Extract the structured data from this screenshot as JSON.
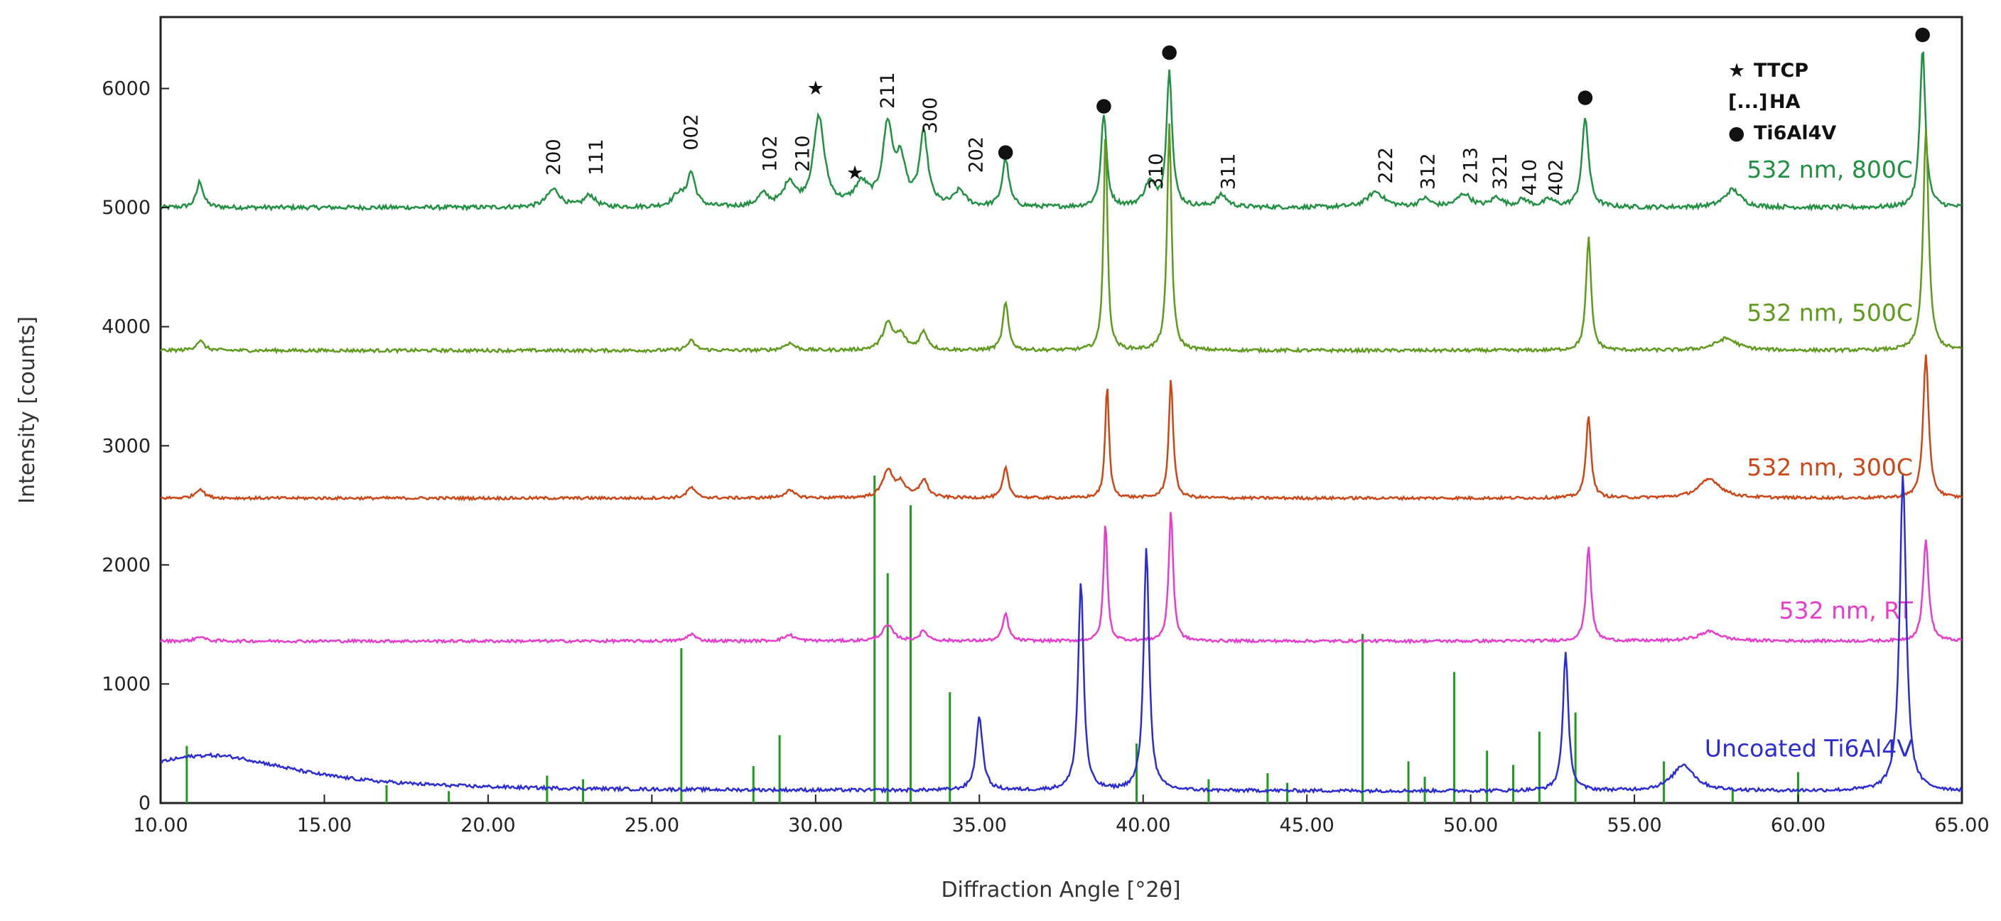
{
  "chart_data": {
    "type": "line",
    "xlabel": "Diffraction Angle [°2θ]",
    "ylabel": "Intensity [counts]",
    "xlim": [
      10,
      65
    ],
    "ylim": [
      0,
      6600
    ],
    "xticks": [
      "10.00",
      "15.00",
      "20.00",
      "25.00",
      "30.00",
      "35.00",
      "40.00",
      "45.00",
      "50.00",
      "55.00",
      "60.00",
      "65.00"
    ],
    "yticks": [
      "0",
      "1000",
      "2000",
      "3000",
      "4000",
      "5000",
      "6000"
    ],
    "grid": false,
    "legend": [
      {
        "symbol": "★",
        "text": "TTCP"
      },
      {
        "symbol": "[...]",
        "text": "HA"
      },
      {
        "symbol": "●",
        "text": "Ti6Al4V"
      }
    ],
    "series": [
      {
        "name": "532 nm, 800C",
        "color": "#1f9140",
        "baseline": 5000,
        "noise": 18,
        "peaks": [
          [
            11.2,
            220,
            0.12
          ],
          [
            22.0,
            150,
            0.25
          ],
          [
            23.1,
            100,
            0.2
          ],
          [
            25.8,
            100,
            0.2
          ],
          [
            26.2,
            280,
            0.15
          ],
          [
            28.4,
            100,
            0.2
          ],
          [
            29.2,
            200,
            0.2
          ],
          [
            30.1,
            750,
            0.2
          ],
          [
            31.4,
            180,
            0.25
          ],
          [
            32.2,
            660,
            0.18
          ],
          [
            32.6,
            350,
            0.18
          ],
          [
            33.3,
            600,
            0.15
          ],
          [
            34.4,
            130,
            0.2
          ],
          [
            35.8,
            400,
            0.12
          ],
          [
            38.8,
            780,
            0.1
          ],
          [
            40.2,
            200,
            0.2
          ],
          [
            40.8,
            1150,
            0.1
          ],
          [
            42.4,
            100,
            0.2
          ],
          [
            47.1,
            130,
            0.3
          ],
          [
            48.6,
            70,
            0.2
          ],
          [
            49.8,
            110,
            0.25
          ],
          [
            50.8,
            80,
            0.2
          ],
          [
            51.6,
            60,
            0.2
          ],
          [
            52.4,
            60,
            0.2
          ],
          [
            53.5,
            750,
            0.12
          ],
          [
            58.0,
            150,
            0.3
          ],
          [
            63.8,
            1350,
            0.1
          ]
        ],
        "label_x": 63.5,
        "label_y": 5250
      },
      {
        "name": "532 nm, 500C",
        "color": "#5e9a1b",
        "baseline": 3800,
        "noise": 14,
        "peaks": [
          [
            11.2,
            80,
            0.15
          ],
          [
            26.2,
            80,
            0.15
          ],
          [
            29.2,
            60,
            0.2
          ],
          [
            32.2,
            220,
            0.18
          ],
          [
            32.6,
            120,
            0.18
          ],
          [
            33.3,
            150,
            0.15
          ],
          [
            35.8,
            400,
            0.1
          ],
          [
            38.85,
            1850,
            0.07
          ],
          [
            40.8,
            1900,
            0.08
          ],
          [
            53.6,
            950,
            0.09
          ],
          [
            57.8,
            100,
            0.4
          ],
          [
            63.9,
            1850,
            0.1
          ]
        ],
        "label_x": 63.5,
        "label_y": 4050
      },
      {
        "name": "532 nm, 300C",
        "color": "#cd4616",
        "baseline": 2560,
        "noise": 12,
        "peaks": [
          [
            11.2,
            80,
            0.15
          ],
          [
            26.2,
            90,
            0.15
          ],
          [
            29.2,
            60,
            0.2
          ],
          [
            32.2,
            230,
            0.18
          ],
          [
            32.6,
            120,
            0.18
          ],
          [
            33.3,
            150,
            0.15
          ],
          [
            35.8,
            250,
            0.1
          ],
          [
            38.9,
            950,
            0.07
          ],
          [
            40.85,
            1000,
            0.08
          ],
          [
            53.6,
            700,
            0.09
          ],
          [
            57.3,
            160,
            0.4
          ],
          [
            63.9,
            1200,
            0.1
          ]
        ],
        "label_x": 63.5,
        "label_y": 2750
      },
      {
        "name": "532 nm, RT",
        "color": "#e83ccf",
        "baseline": 1360,
        "noise": 12,
        "peaks": [
          [
            11.2,
            40,
            0.15
          ],
          [
            26.2,
            60,
            0.15
          ],
          [
            29.2,
            50,
            0.2
          ],
          [
            32.2,
            130,
            0.2
          ],
          [
            33.3,
            80,
            0.15
          ],
          [
            35.8,
            230,
            0.1
          ],
          [
            38.85,
            1000,
            0.07
          ],
          [
            40.85,
            1100,
            0.08
          ],
          [
            53.6,
            800,
            0.09
          ],
          [
            57.3,
            80,
            0.4
          ],
          [
            63.9,
            850,
            0.1
          ]
        ],
        "label_x": 63.5,
        "label_y": 1550
      },
      {
        "name": "Uncoated Ti6Al4V",
        "color": "#2c2cd6",
        "baseline": 100,
        "noise": 14,
        "peaks": [
          [
            11.5,
            300,
            3.2
          ],
          [
            35.0,
            620,
            0.12
          ],
          [
            38.1,
            1750,
            0.1
          ],
          [
            40.1,
            2050,
            0.1
          ],
          [
            52.9,
            1150,
            0.1
          ],
          [
            56.5,
            220,
            0.4
          ],
          [
            63.2,
            2650,
            0.12
          ]
        ],
        "label_x": 63.5,
        "label_y": 390
      }
    ],
    "reference_lines": {
      "color": "#1e9a1e",
      "positions": [
        10.8,
        16.9,
        18.8,
        21.8,
        22.9,
        25.9,
        28.1,
        28.9,
        31.8,
        32.2,
        32.9,
        34.1,
        39.8,
        42.0,
        43.8,
        44.4,
        46.7,
        48.1,
        48.6,
        49.5,
        50.5,
        51.3,
        52.1,
        53.2,
        55.9,
        58.0,
        60.0
      ],
      "heights": [
        480,
        150,
        100,
        230,
        200,
        1300,
        310,
        570,
        2750,
        1930,
        2500,
        930,
        500,
        200,
        250,
        170,
        1420,
        350,
        220,
        1100,
        440,
        320,
        600,
        760,
        350,
        120,
        260
      ]
    },
    "peak_labels": [
      {
        "x": 22.0,
        "y": 5270,
        "text": "200"
      },
      {
        "x": 23.3,
        "y": 5270,
        "text": "111"
      },
      {
        "x": 26.2,
        "y": 5480,
        "text": "002"
      },
      {
        "x": 28.6,
        "y": 5300,
        "text": "102"
      },
      {
        "x": 29.6,
        "y": 5300,
        "text": "210"
      },
      {
        "x": 32.2,
        "y": 5830,
        "text": "211"
      },
      {
        "x": 33.5,
        "y": 5620,
        "text": "300"
      },
      {
        "x": 34.9,
        "y": 5290,
        "text": "202"
      },
      {
        "x": 40.4,
        "y": 5150,
        "text": "310"
      },
      {
        "x": 42.6,
        "y": 5150,
        "text": "311"
      },
      {
        "x": 47.4,
        "y": 5200,
        "text": "222"
      },
      {
        "x": 48.7,
        "y": 5150,
        "text": "312"
      },
      {
        "x": 50.0,
        "y": 5200,
        "text": "213"
      },
      {
        "x": 50.9,
        "y": 5150,
        "text": "321"
      },
      {
        "x": 51.8,
        "y": 5100,
        "text": "410"
      },
      {
        "x": 52.6,
        "y": 5100,
        "text": "402"
      }
    ],
    "markers": [
      {
        "x": 30.0,
        "y": 5950,
        "symbol": "★"
      },
      {
        "x": 31.2,
        "y": 5240,
        "symbol": "★"
      },
      {
        "x": 35.8,
        "y": 5420,
        "symbol": "●"
      },
      {
        "x": 38.8,
        "y": 5810,
        "symbol": "●"
      },
      {
        "x": 40.8,
        "y": 6260,
        "symbol": "●"
      },
      {
        "x": 53.5,
        "y": 5880,
        "symbol": "●"
      },
      {
        "x": 63.8,
        "y": 6410,
        "symbol": "●"
      }
    ]
  }
}
